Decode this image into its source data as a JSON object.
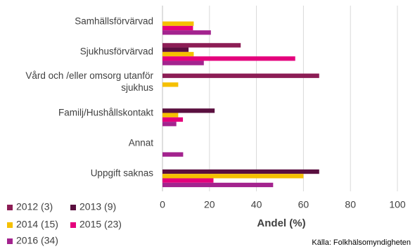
{
  "chart_data": {
    "type": "hbar",
    "categories": [
      "Samhällsförvärvad",
      "Sjukhusförvärvad",
      "Vård och /eller omsorg utanför sjukhus",
      "Familj/Hushållskontakt",
      "Annat",
      "Uppgift saknas"
    ],
    "series": [
      {
        "name": "2012 (3)",
        "color": "#8c1d55",
        "values": [
          0,
          33.3,
          66.7,
          0,
          0,
          0
        ]
      },
      {
        "name": "2013 (9)",
        "color": "#5a0f3f",
        "values": [
          0,
          11.1,
          0,
          22.2,
          0,
          66.7
        ]
      },
      {
        "name": "2014 (15)",
        "color": "#f5c000",
        "values": [
          13.3,
          13.3,
          6.7,
          6.7,
          0,
          60
        ]
      },
      {
        "name": "2015 (23)",
        "color": "#e4007c",
        "values": [
          13,
          56.5,
          0,
          8.7,
          0,
          21.7
        ]
      },
      {
        "name": "2016 (34)",
        "color": "#a3238e",
        "values": [
          20.6,
          17.6,
          0,
          5.9,
          8.8,
          47.1
        ]
      }
    ],
    "xlim": [
      0,
      100
    ],
    "xticks": [
      0,
      20,
      40,
      60,
      80,
      100
    ],
    "grid": true,
    "xlabel": "Andel (%)",
    "source": "Källa:  Folkhälsomyndigheten"
  }
}
